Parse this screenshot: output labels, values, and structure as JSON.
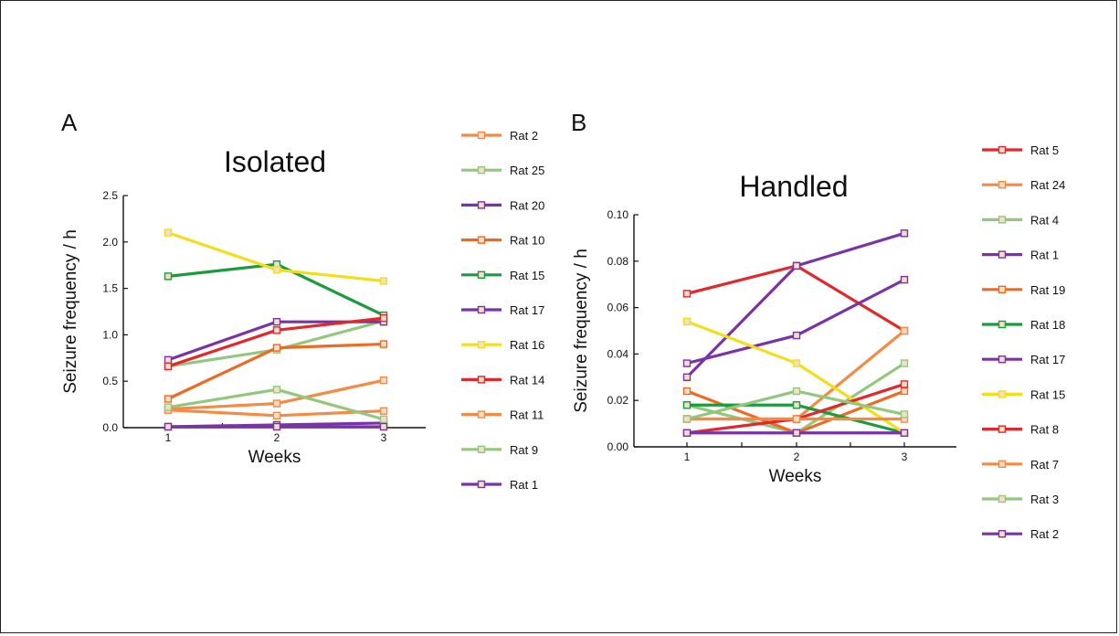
{
  "chart_data": [
    {
      "panel_label": "A",
      "title": "Isolated",
      "type": "line",
      "xlabel": "Weeks",
      "ylabel": "Seizure frequency / h",
      "x": [
        1,
        2,
        3
      ],
      "xticks": [
        "1",
        "2",
        "3"
      ],
      "ylim": [
        0,
        2.5
      ],
      "yticks": [
        "0.0",
        "0.5",
        "1.0",
        "1.5",
        "2.0",
        "2.5"
      ],
      "legend_position": "right",
      "series": [
        {
          "name": "Rat 2",
          "color": "#f58a43",
          "values": [
            0.2,
            0.26,
            0.51
          ]
        },
        {
          "name": "Rat 25",
          "color": "#92c87d",
          "values": [
            0.66,
            0.84,
            1.15
          ]
        },
        {
          "name": "Rat 20",
          "color": "#7a33a6",
          "values": [
            0.01,
            0.03,
            0.05
          ]
        },
        {
          "name": "Rat 10",
          "color": "#ee6a22",
          "values": [
            0.31,
            0.86,
            0.9
          ]
        },
        {
          "name": "Rat 15",
          "color": "#1a9b3e",
          "values": [
            1.63,
            1.76,
            1.21
          ]
        },
        {
          "name": "Rat 17",
          "color": "#7a33a6",
          "values": [
            0.73,
            1.14,
            1.14
          ]
        },
        {
          "name": "Rat 16",
          "color": "#f2de1a",
          "values": [
            2.1,
            1.7,
            1.58
          ]
        },
        {
          "name": "Rat 14",
          "color": "#e0282d",
          "values": [
            0.66,
            1.05,
            1.18
          ]
        },
        {
          "name": "Rat 11",
          "color": "#f58a43",
          "values": [
            0.19,
            0.13,
            0.18
          ]
        },
        {
          "name": "Rat 9",
          "color": "#92c87d",
          "values": [
            0.22,
            0.41,
            0.09
          ]
        },
        {
          "name": "Rat 1",
          "color": "#7a33a6",
          "values": [
            0.01,
            0.01,
            0.01
          ]
        }
      ]
    },
    {
      "panel_label": "B",
      "title": "Handled",
      "type": "line",
      "xlabel": "Weeks",
      "ylabel": "Seizure frequency / h",
      "x": [
        1,
        2,
        3
      ],
      "xticks": [
        "1",
        "2",
        "3"
      ],
      "ylim": [
        0,
        0.1
      ],
      "yticks": [
        "0.00",
        "0.02",
        "0.04",
        "0.06",
        "0.08",
        "0.10"
      ],
      "legend_position": "right",
      "series": [
        {
          "name": "Rat 5",
          "color": "#e0282d",
          "values": [
            0.066,
            0.078,
            0.05
          ]
        },
        {
          "name": "Rat 24",
          "color": "#f58a43",
          "values": [
            0.012,
            0.012,
            0.05
          ]
        },
        {
          "name": "Rat 4",
          "color": "#92c87d",
          "values": [
            0.018,
            0.006,
            0.036
          ]
        },
        {
          "name": "Rat 1",
          "color": "#7a33a6",
          "values": [
            0.036,
            0.048,
            0.072
          ]
        },
        {
          "name": "Rat 19",
          "color": "#ee6a22",
          "values": [
            0.024,
            0.006,
            0.024
          ]
        },
        {
          "name": "Rat 18",
          "color": "#1a9b3e",
          "values": [
            0.018,
            0.018,
            0.006
          ]
        },
        {
          "name": "Rat 17",
          "color": "#7a33a6",
          "values": [
            0.03,
            0.078,
            0.092
          ]
        },
        {
          "name": "Rat 15",
          "color": "#f2de1a",
          "values": [
            0.054,
            0.036,
            0.006
          ]
        },
        {
          "name": "Rat 8",
          "color": "#e0282d",
          "values": [
            0.006,
            0.012,
            0.027
          ]
        },
        {
          "name": "Rat 7",
          "color": "#f58a43",
          "values": [
            0.012,
            0.012,
            0.012
          ]
        },
        {
          "name": "Rat 3",
          "color": "#92c87d",
          "values": [
            0.012,
            0.024,
            0.014
          ]
        },
        {
          "name": "Rat 2",
          "color": "#7a33a6",
          "values": [
            0.006,
            0.006,
            0.006
          ]
        }
      ]
    }
  ]
}
